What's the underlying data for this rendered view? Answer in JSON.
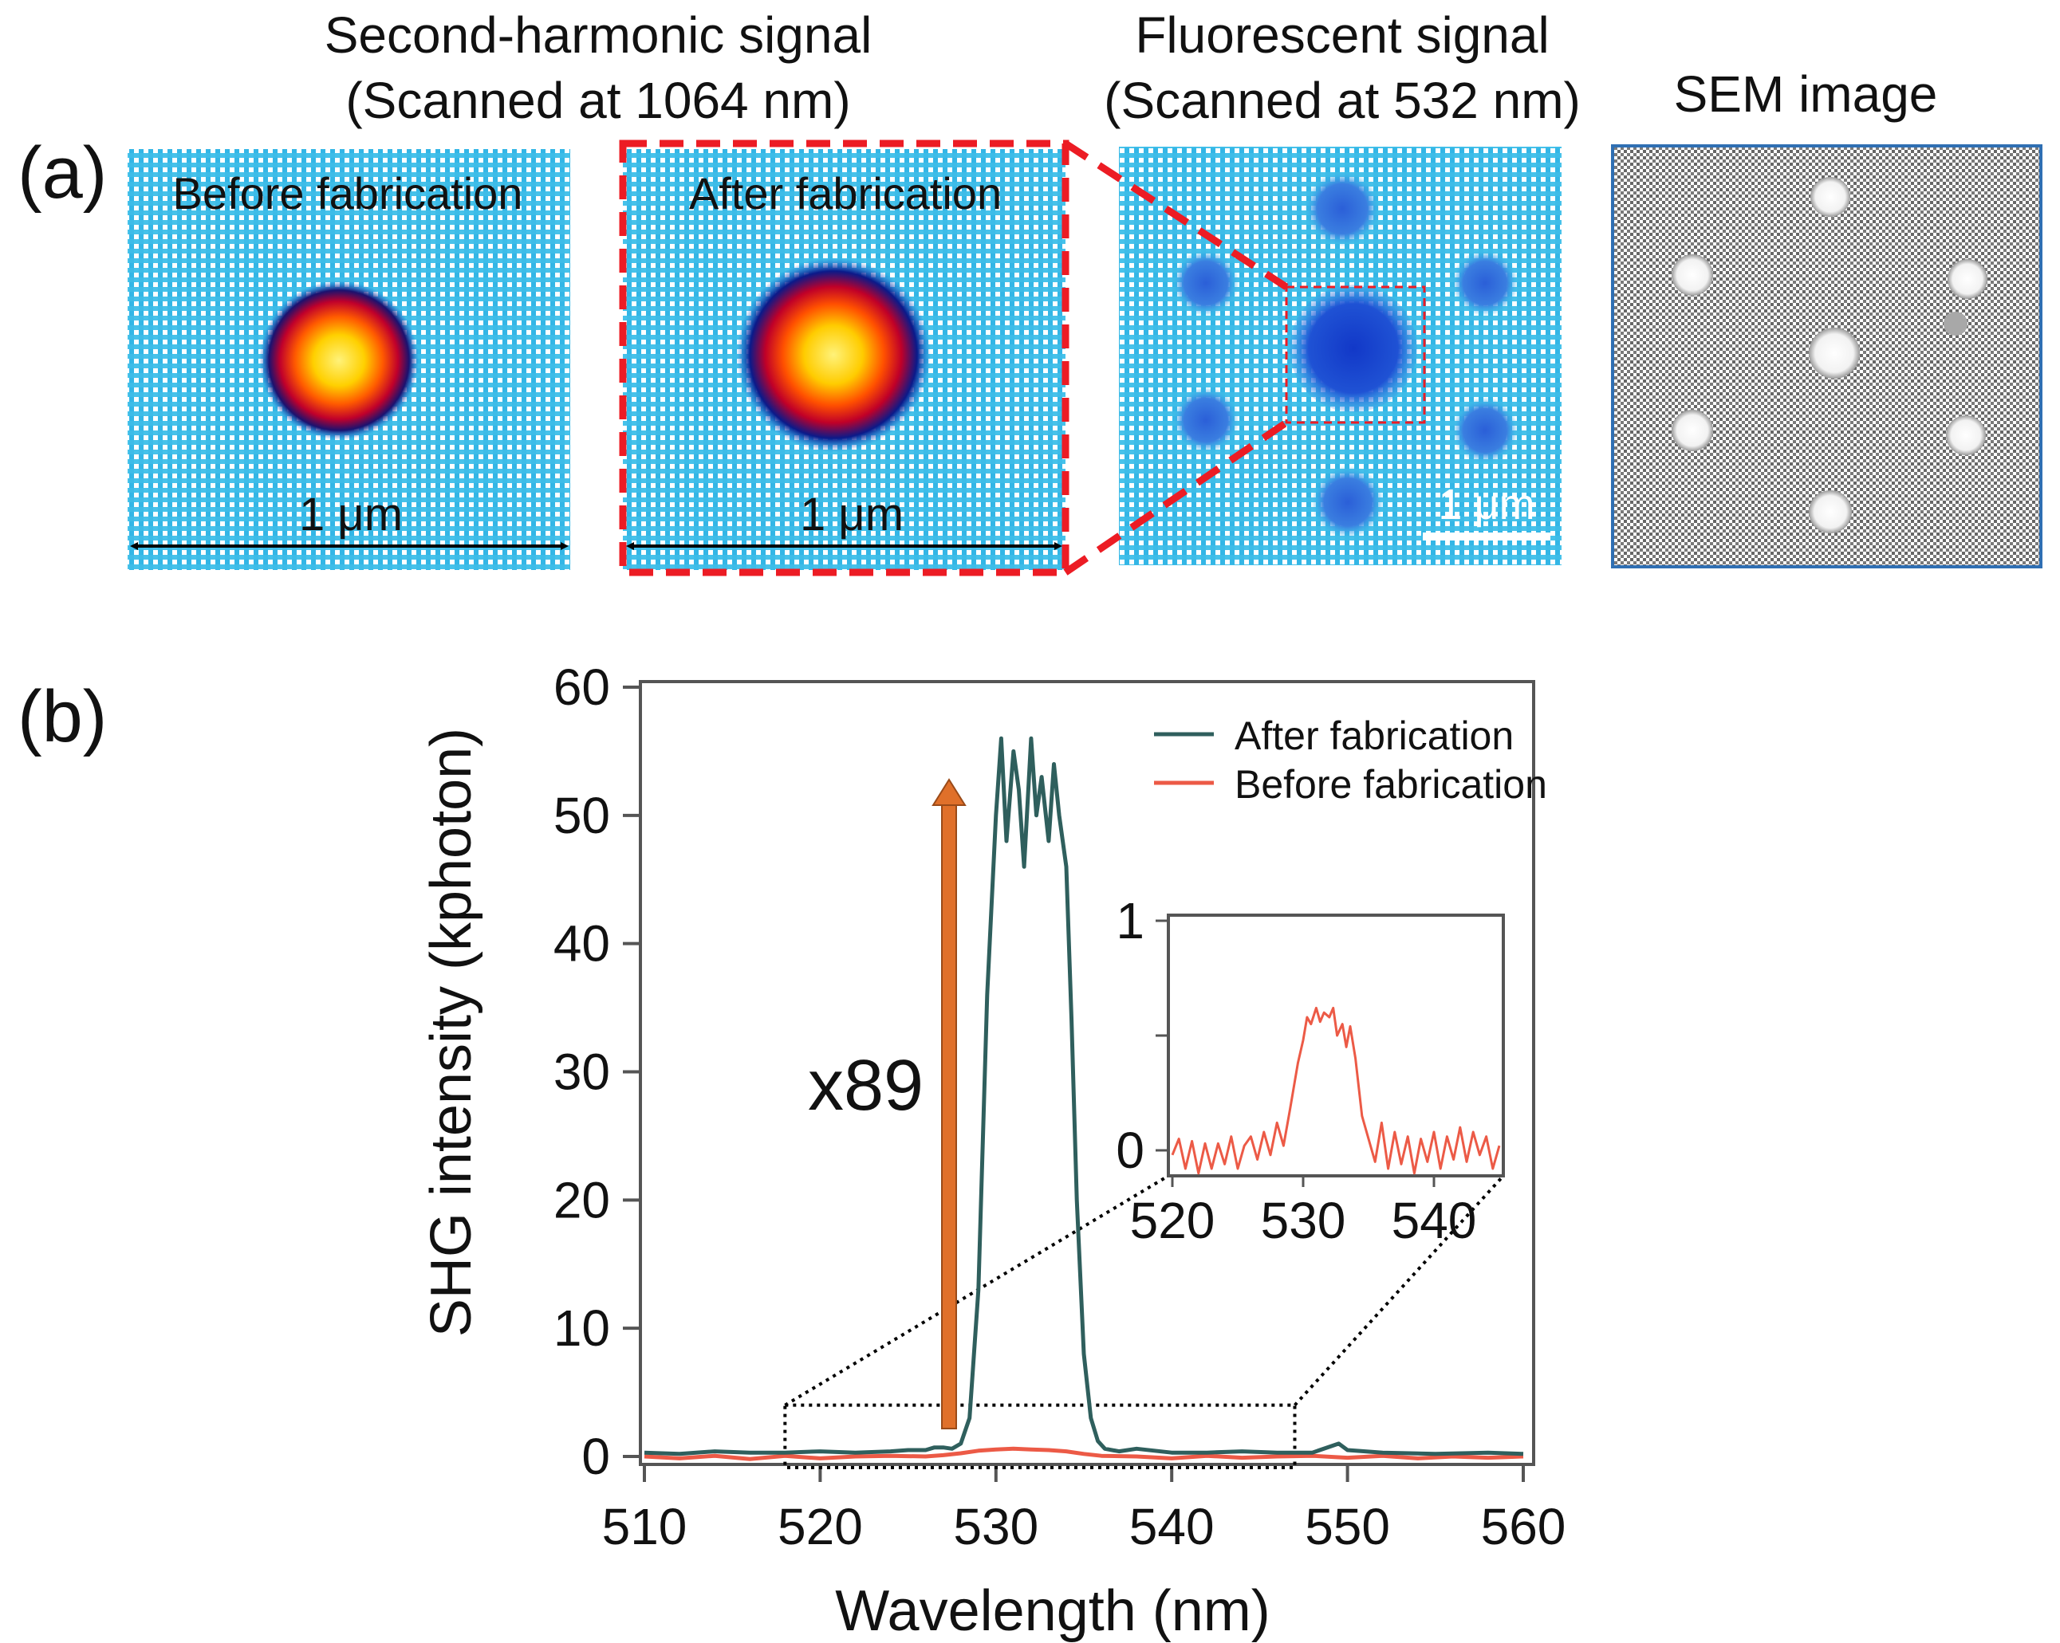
{
  "panel_a": {
    "label": "(a)",
    "shg_title_line1": "Second-harmonic signal",
    "shg_title_line2": "(Scanned at 1064 nm)",
    "fluor_title_line1": "Fluorescent signal",
    "fluor_title_line2": "(Scanned at 532 nm)",
    "sem_title": "SEM image",
    "before_label": "Before fabrication",
    "after_label": "After fabrication",
    "scale_label": "1 μm",
    "fluor_scale_label": "1 μm"
  },
  "panel_b": {
    "label": "(b)",
    "multiplier_label": "x89"
  },
  "colors": {
    "after": "#2f5f5d",
    "before": "#ec5a46",
    "arrow": "#e0702a",
    "highlight": "#ec1c24",
    "map_background": "#3cbdea",
    "sem_background": "#707070"
  },
  "chart_data": [
    {
      "name": "main",
      "type": "line",
      "title": "",
      "xlabel": "Wavelength (nm)",
      "ylabel": "SHG intensity (kphoton)",
      "xlim": [
        510,
        560
      ],
      "ylim": [
        0,
        60
      ],
      "xticks": [
        510,
        520,
        530,
        540,
        550,
        560
      ],
      "yticks": [
        0,
        10,
        20,
        30,
        40,
        50,
        60
      ],
      "legend": {
        "position": "top-right",
        "entries": [
          "After fabrication",
          "Before fabrication"
        ]
      },
      "zoom_region": {
        "x": [
          518,
          547
        ],
        "y": [
          0,
          4
        ]
      },
      "series": [
        {
          "name": "After fabrication",
          "x": [
            510,
            512,
            514,
            516,
            518,
            520,
            522,
            524,
            525,
            526,
            526.5,
            527,
            527.5,
            528,
            528.5,
            529,
            529.5,
            530,
            530.3,
            530.6,
            531,
            531.3,
            531.6,
            532,
            532.3,
            532.6,
            533,
            533.3,
            533.6,
            534,
            534.3,
            534.6,
            535,
            535.4,
            535.8,
            536.2,
            537,
            538,
            540,
            542,
            544,
            546,
            548,
            549.5,
            550,
            552,
            555,
            558,
            560
          ],
          "y": [
            0.3,
            0.2,
            0.4,
            0.3,
            0.3,
            0.4,
            0.3,
            0.4,
            0.5,
            0.5,
            0.7,
            0.7,
            0.6,
            1,
            3,
            13,
            36,
            50,
            56,
            48,
            55,
            52,
            46,
            56,
            50,
            53,
            48,
            54,
            50,
            46,
            34,
            20,
            8,
            3,
            1.2,
            0.6,
            0.4,
            0.6,
            0.3,
            0.3,
            0.4,
            0.3,
            0.3,
            1,
            0.5,
            0.3,
            0.2,
            0.3,
            0.2
          ]
        },
        {
          "name": "Before fabrication",
          "x": [
            510,
            512,
            514,
            516,
            518,
            520,
            522,
            524,
            526,
            527,
            528,
            529,
            530,
            531,
            532,
            533,
            534,
            535,
            536,
            538,
            540,
            542,
            544,
            546,
            548,
            550,
            552,
            554,
            556,
            558,
            560
          ],
          "y": [
            0,
            -0.15,
            0.05,
            -0.2,
            0.05,
            -0.15,
            0,
            0.05,
            0,
            0.1,
            0.25,
            0.45,
            0.55,
            0.6,
            0.55,
            0.5,
            0.4,
            0.2,
            0.05,
            0,
            -0.15,
            0.05,
            -0.1,
            0,
            0.05,
            -0.1,
            0.05,
            -0.15,
            0,
            -0.1,
            0
          ]
        }
      ]
    },
    {
      "name": "inset",
      "type": "line",
      "xlim": [
        520,
        545
      ],
      "ylim": [
        -0.1,
        1
      ],
      "xticks": [
        520,
        530,
        540
      ],
      "yticks": [
        0,
        1
      ],
      "series": [
        {
          "name": "Before fabrication",
          "x": [
            520,
            520.5,
            521,
            521.5,
            522,
            522.5,
            523,
            523.5,
            524,
            524.5,
            525,
            525.5,
            526,
            526.5,
            527,
            527.5,
            528,
            528.5,
            529,
            529.3,
            529.6,
            530,
            530.3,
            530.6,
            531,
            531.3,
            531.6,
            532,
            532.3,
            532.6,
            533,
            533.3,
            533.6,
            534,
            534.5,
            535,
            535.5,
            536,
            536.5,
            537,
            537.5,
            538,
            538.5,
            539,
            539.5,
            540,
            540.5,
            541,
            541.5,
            542,
            542.5,
            543,
            543.5,
            544,
            544.5,
            545
          ],
          "y": [
            -0.02,
            0.05,
            -0.08,
            0.04,
            -0.1,
            0.03,
            -0.08,
            0.03,
            -0.06,
            0.06,
            -0.08,
            0.02,
            0.06,
            -0.04,
            0.08,
            -0.02,
            0.12,
            0.02,
            0.18,
            0.28,
            0.38,
            0.48,
            0.58,
            0.55,
            0.62,
            0.56,
            0.6,
            0.58,
            0.62,
            0.5,
            0.55,
            0.45,
            0.54,
            0.4,
            0.15,
            0.05,
            -0.05,
            0.12,
            -0.08,
            0.08,
            -0.06,
            0.06,
            -0.1,
            0.05,
            -0.05,
            0.08,
            -0.08,
            0.06,
            -0.04,
            0.1,
            -0.05,
            0.08,
            -0.02,
            0.06,
            -0.08,
            0.02
          ]
        }
      ]
    }
  ]
}
